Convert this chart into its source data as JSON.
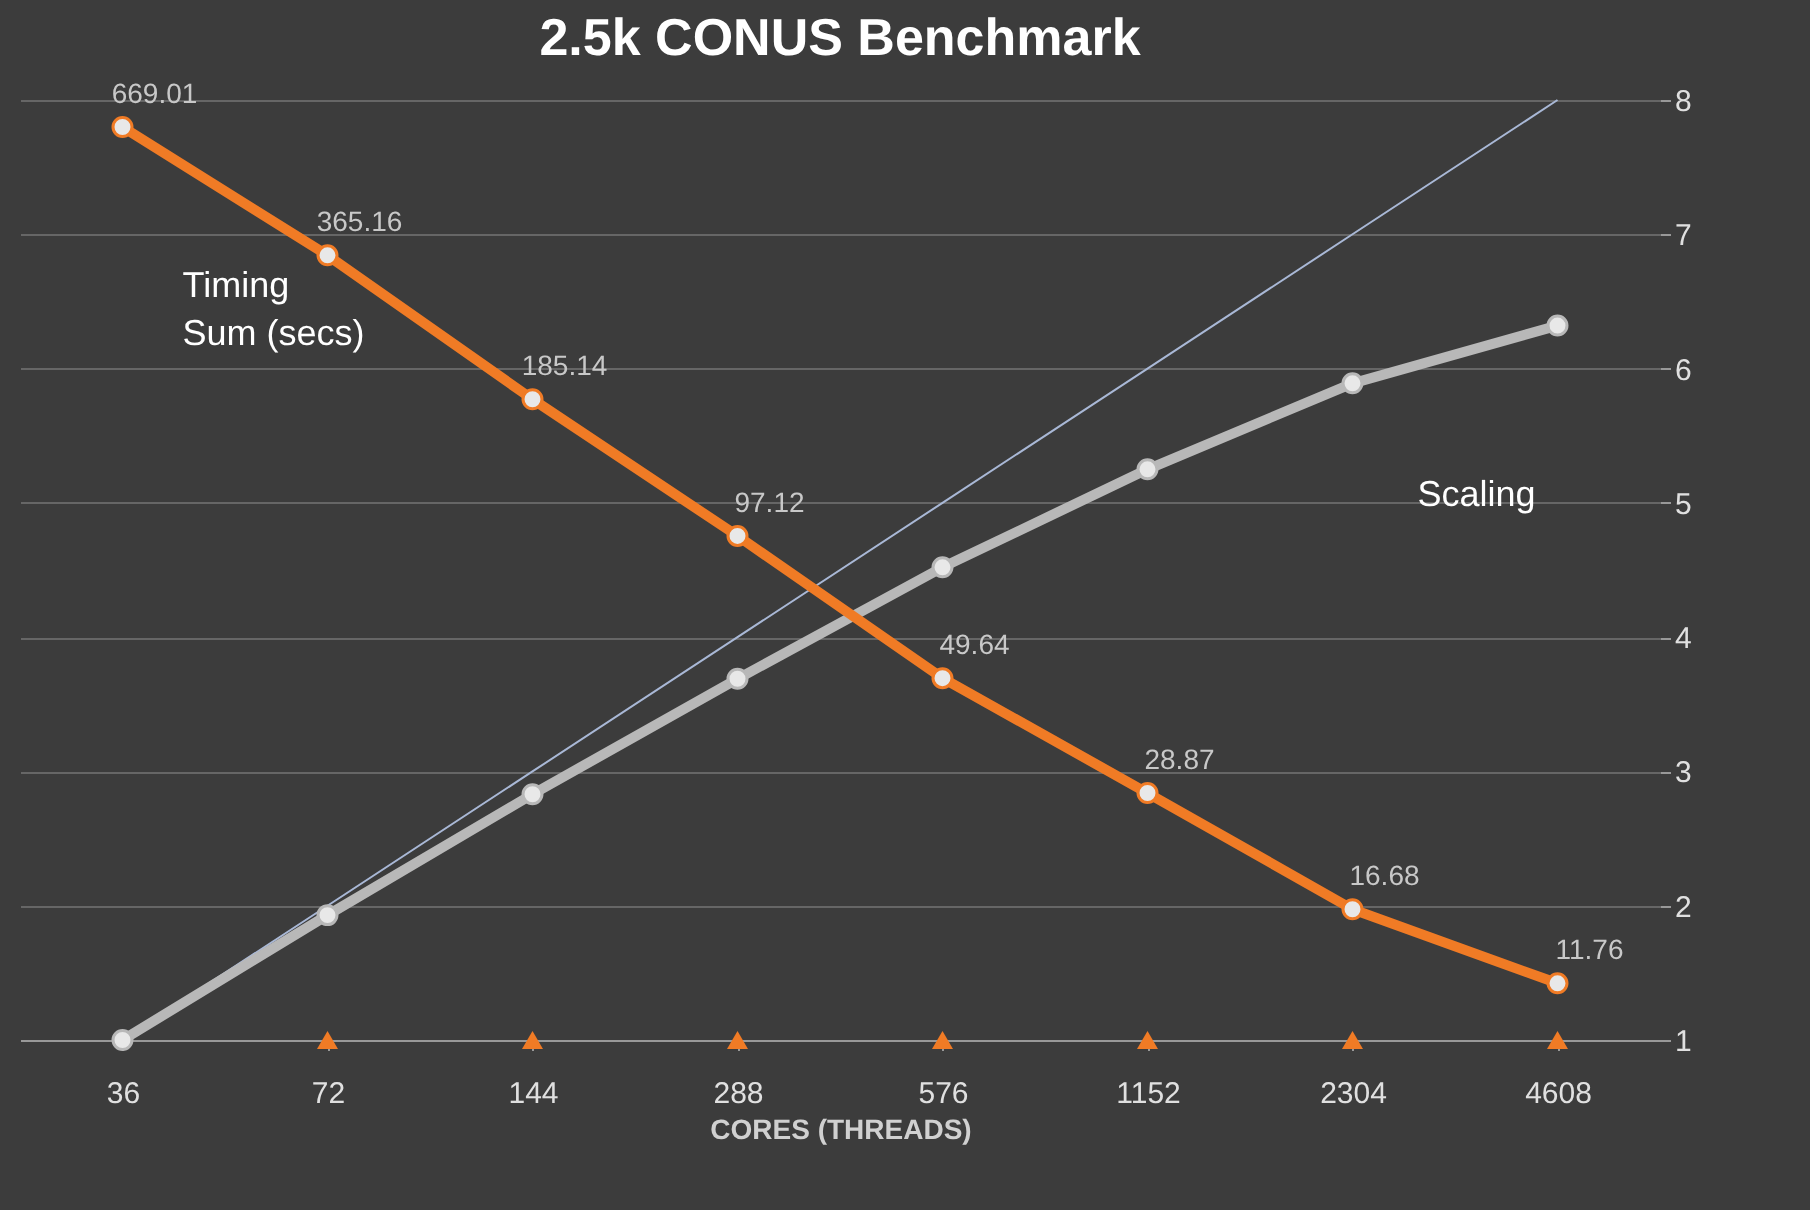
{
  "chart_data": {
    "type": "line",
    "title": "2.5k CONUS Benchmark",
    "xlabel": "CORES (THREADS)",
    "categories": [
      "36",
      "72",
      "144",
      "288",
      "576",
      "1152",
      "2304",
      "4608"
    ],
    "series": [
      {
        "name": null,
        "color": "#a9b8d6",
        "values": [
          1,
          2,
          3,
          4,
          5,
          6,
          7,
          8
        ],
        "marker": "none"
      },
      {
        "name": "Scaling",
        "color": "#b8b8b8",
        "values": [
          1,
          1.93,
          2.83,
          3.69,
          4.52,
          5.25,
          5.89,
          6.32
        ],
        "marker": "circle"
      },
      {
        "name": null,
        "type": "scatter",
        "color": "#f07b25",
        "values": [
          null,
          1,
          1,
          1,
          1,
          1,
          1,
          1
        ],
        "marker": "triangle"
      },
      {
        "name": "Timing Sum (secs)",
        "color": "#f07b25",
        "axis": "y2",
        "values": [
          669.01,
          365.16,
          185.14,
          97.12,
          49.64,
          28.87,
          16.68,
          11.76
        ],
        "marker": "circle",
        "data_labels": true
      }
    ],
    "ylim": [
      1,
      8
    ],
    "yticks": [
      1,
      2,
      3,
      4,
      5,
      6,
      7,
      8
    ],
    "y2lim": [
      9,
      760
    ],
    "log": "y2",
    "grid": "y"
  }
}
